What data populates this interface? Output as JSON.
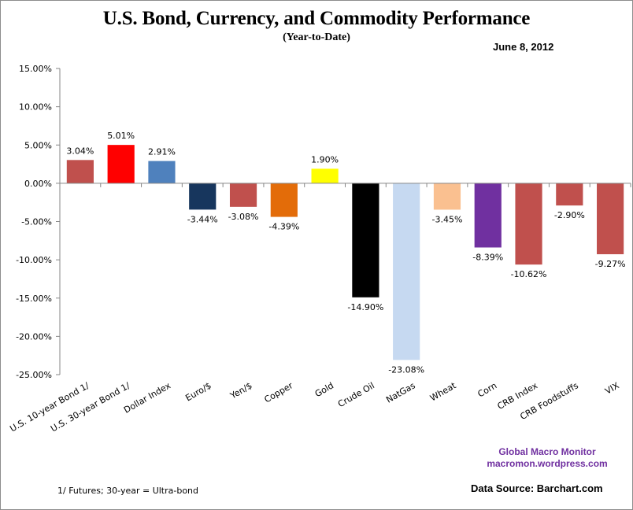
{
  "header": {
    "title": "U.S. Bond, Currency, and Commodity Performance",
    "subtitle": "(Year-to-Date)",
    "date": "June 8, 2012"
  },
  "footer": {
    "brand_name": "Global Macro Monitor",
    "brand_url": "macromon.wordpress.com",
    "data_source": "Data Source:  Barchart.com",
    "footnote": "1/   Futures; 30-year = Ultra-bond"
  },
  "chart_data": {
    "type": "bar",
    "title": "U.S. Bond, Currency, and Commodity Performance",
    "subtitle": "(Year-to-Date)",
    "xlabel": "",
    "ylabel": "",
    "ylim": [
      -25,
      15
    ],
    "yticks": [
      15,
      10,
      5,
      0,
      -5,
      -10,
      -15,
      -20,
      -25
    ],
    "ytick_labels": [
      "15.00%",
      "10.00%",
      "5.00%",
      "0.00%",
      "-5.00%",
      "-10.00%",
      "-15.00%",
      "-20.00%",
      "-25.00%"
    ],
    "grid": false,
    "legend": "none",
    "unit": "%",
    "categories": [
      "U.S. 10-year Bond 1/",
      "U.S. 30-year Bond 1/",
      "Dollar Index",
      "Euro/$",
      "Yen/$",
      "Copper",
      "Gold",
      "Crude Oil",
      "NatGas",
      "Wheat",
      "Corn",
      "CRB Index",
      "CRB Foodstuffs",
      "VIX"
    ],
    "values": [
      3.04,
      5.01,
      2.91,
      -3.44,
      -3.08,
      -4.39,
      1.9,
      -14.9,
      -23.08,
      -3.45,
      -8.39,
      -10.62,
      -2.9,
      -9.27
    ],
    "data_labels": [
      "3.04%",
      "5.01%",
      "2.91%",
      "-3.44%",
      "-3.08%",
      "-4.39%",
      "1.90%",
      "-14.90%",
      "-23.08%",
      "-3.45%",
      "-8.39%",
      "-10.62%",
      "-2.90%",
      "-9.27%"
    ],
    "colors": [
      "#c0504d",
      "#ff0000",
      "#4f81bd",
      "#17365d",
      "#c0504d",
      "#e36c09",
      "#ffff00",
      "#000000",
      "#c6d9f1",
      "#fac090",
      "#7030a0",
      "#c0504d",
      "#c0504d",
      "#c0504d"
    ]
  }
}
